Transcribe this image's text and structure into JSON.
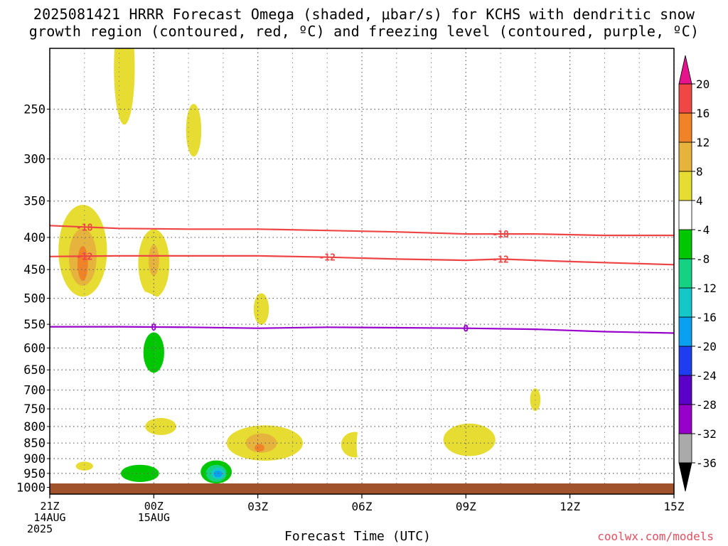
{
  "title": {
    "line1": "2025081421 HRRR Forecast Omega (shaded, μbar/s) for KCHS with dendritic snow",
    "line2": "growth region (contoured, red, ºC) and freezing level (contoured, purple, ºC)"
  },
  "x_axis_title": "Forecast Time (UTC)",
  "credit": "coolwx.com/models",
  "date_labels": [
    {
      "hour": 0,
      "lines": [
        "21Z",
        "14AUG",
        "2025"
      ]
    },
    {
      "hour": 3,
      "lines": [
        "00Z",
        "15AUG"
      ]
    }
  ],
  "colors": {
    "freezing_level": "#9900cc",
    "dgz": "#ee4444",
    "ground": "#a0522d"
  },
  "chart_data": {
    "type": "contour",
    "x": {
      "label": "Forecast Time (UTC)",
      "range_hours": [
        0,
        18
      ],
      "ticks": [
        {
          "hour": 0,
          "label": "21Z"
        },
        {
          "hour": 3,
          "label": "00Z"
        },
        {
          "hour": 6,
          "label": "03Z"
        },
        {
          "hour": 9,
          "label": "06Z"
        },
        {
          "hour": 12,
          "label": "09Z"
        },
        {
          "hour": 15,
          "label": "12Z"
        },
        {
          "hour": 18,
          "label": "15Z"
        }
      ]
    },
    "y": {
      "label": "",
      "range_mb": [
        1025,
        200
      ],
      "scale": "log-pressure",
      "ticks": [
        250,
        300,
        350,
        400,
        450,
        500,
        550,
        600,
        650,
        700,
        750,
        800,
        850,
        900,
        950,
        1000
      ]
    },
    "grid": true,
    "colorbar": {
      "levels": [
        -36,
        -32,
        -28,
        -24,
        -20,
        -16,
        -12,
        -8,
        -4,
        4,
        8,
        12,
        16,
        20
      ],
      "colors": [
        "#000000",
        "#aaaaaa",
        "#9600c8",
        "#5a00c8",
        "#1e3cf0",
        "#0aa0f0",
        "#14c8c8",
        "#14d282",
        "#00c800",
        "#ffffff",
        "#e6dc32",
        "#e6b43c",
        "#f08228",
        "#f04646",
        "#e6148c"
      ]
    },
    "omega_regions": [
      {
        "x": 2.15,
        "p": 215,
        "rx": 0.3,
        "ry": 44,
        "value": 4
      },
      {
        "x": 4.15,
        "p": 270,
        "rx": 0.22,
        "ry": 26,
        "value": 4
      },
      {
        "x": 0.95,
        "p": 420,
        "rx": 0.7,
        "ry": 70,
        "value": 4
      },
      {
        "x": 0.95,
        "p": 430,
        "rx": 0.4,
        "ry": 45,
        "value": 8
      },
      {
        "x": 0.95,
        "p": 440,
        "rx": 0.15,
        "ry": 28,
        "value": 12
      },
      {
        "x": 3.0,
        "p": 440,
        "rx": 0.45,
        "ry": 55,
        "value": 4
      },
      {
        "x": 3.0,
        "p": 435,
        "rx": 0.15,
        "ry": 25,
        "value": 8
      },
      {
        "x": 6.1,
        "p": 520,
        "rx": 0.22,
        "ry": 30,
        "value": 4
      },
      {
        "x": 3.2,
        "p": 800,
        "rx": 0.45,
        "ry": 25,
        "value": 4
      },
      {
        "x": 1.0,
        "p": 925,
        "rx": 0.25,
        "ry": 15,
        "value": 4
      },
      {
        "x": 6.2,
        "p": 850,
        "rx": 1.1,
        "ry": 55,
        "value": 4
      },
      {
        "x": 6.1,
        "p": 850,
        "rx": 0.45,
        "ry": 30,
        "value": 8
      },
      {
        "x": 6.05,
        "p": 865,
        "rx": 0.14,
        "ry": 12,
        "value": 12
      },
      {
        "x": 8.8,
        "p": 855,
        "rx": 0.4,
        "ry": 40,
        "value": 4
      },
      {
        "x": 12.1,
        "p": 840,
        "rx": 0.75,
        "ry": 50,
        "value": 4
      },
      {
        "x": 14.0,
        "p": 725,
        "rx": 0.15,
        "ry": 30,
        "value": 4
      },
      {
        "x": 3.4,
        "p": 290,
        "rx": 0.3,
        "ry": 45,
        "value": -4
      },
      {
        "x": 15.0,
        "p": 310,
        "rx": 0.45,
        "ry": 70,
        "value": -4
      },
      {
        "x": 2.4,
        "p": 560,
        "rx": 1.2,
        "ry": 80,
        "value": -4
      },
      {
        "x": 1.3,
        "p": 635,
        "rx": 0.7,
        "ry": 45,
        "value": -4
      },
      {
        "x": 3.0,
        "p": 605,
        "rx": 0.7,
        "ry": 70,
        "value": -4
      },
      {
        "x": 3.0,
        "p": 610,
        "rx": 0.3,
        "ry": 45,
        "value": -8
      },
      {
        "x": 2.0,
        "p": 815,
        "rx": 0.1,
        "ry": 45,
        "value": -4
      },
      {
        "x": 6.0,
        "p": 720,
        "rx": 0.35,
        "ry": 22,
        "value": -4
      },
      {
        "x": 9.1,
        "p": 855,
        "rx": 0.25,
        "ry": 85,
        "value": -4
      },
      {
        "x": 16.0,
        "p": 865,
        "rx": 0.16,
        "ry": 20,
        "value": -4
      },
      {
        "x": 17.9,
        "p": 600,
        "rx": 0.35,
        "ry": 110,
        "value": -4
      },
      {
        "x": 2.8,
        "p": 945,
        "rx": 1.0,
        "ry": 50,
        "value": -4
      },
      {
        "x": 2.6,
        "p": 950,
        "rx": 0.55,
        "ry": 30,
        "value": -8
      },
      {
        "x": 4.8,
        "p": 940,
        "rx": 0.7,
        "ry": 55,
        "value": -4
      },
      {
        "x": 4.8,
        "p": 945,
        "rx": 0.45,
        "ry": 40,
        "value": -8
      },
      {
        "x": 4.8,
        "p": 950,
        "rx": 0.3,
        "ry": 30,
        "value": -12
      },
      {
        "x": 4.85,
        "p": 950,
        "rx": 0.2,
        "ry": 20,
        "value": -16
      },
      {
        "x": 4.85,
        "p": 952,
        "rx": 0.12,
        "ry": 12,
        "value": -20
      }
    ],
    "contours": [
      {
        "value": -18,
        "color": "#ee4444",
        "label": "-18",
        "label_x": [
          1.0,
          13.0
        ],
        "points": [
          [
            0,
            383
          ],
          [
            2,
            387
          ],
          [
            4,
            388
          ],
          [
            6,
            388
          ],
          [
            8,
            390
          ],
          [
            10,
            392
          ],
          [
            12,
            395
          ],
          [
            14,
            395
          ],
          [
            16,
            397
          ],
          [
            18,
            397
          ]
        ]
      },
      {
        "value": -12,
        "color": "#ee4444",
        "label": "-12",
        "label_x": [
          1.0,
          8.0,
          13.0
        ],
        "points": [
          [
            0,
            429
          ],
          [
            2,
            428
          ],
          [
            4,
            428
          ],
          [
            6,
            428
          ],
          [
            8,
            430
          ],
          [
            10,
            433
          ],
          [
            12,
            435
          ],
          [
            13,
            433
          ],
          [
            15,
            437
          ],
          [
            18,
            442
          ]
        ]
      },
      {
        "value": 0,
        "color": "#9900cc",
        "label": "0",
        "label_x": [
          3.0,
          12.0
        ],
        "points": [
          [
            0,
            555
          ],
          [
            2,
            555
          ],
          [
            4,
            556
          ],
          [
            6,
            558
          ],
          [
            8,
            556
          ],
          [
            10,
            557
          ],
          [
            12,
            558
          ],
          [
            14,
            560
          ],
          [
            16,
            565
          ],
          [
            18,
            568
          ]
        ]
      }
    ]
  }
}
